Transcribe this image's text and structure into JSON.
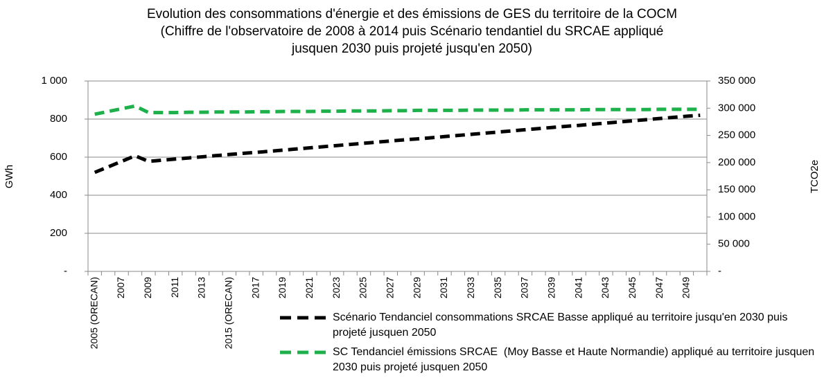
{
  "chart_data": {
    "type": "line",
    "title": [
      "Evolution des consommations d'énergie et des émissions de GES du territoire de la COCM",
      "(Chiffre de l'observatoire de 2008 à 2014 puis Scénario tendantiel du SRCAE appliqué",
      "jusquen 2030 puis projeté jusqu'en 2050)"
    ],
    "ylabel": "GWh",
    "y2label": "TCO2e",
    "categories": [
      "2005 (ORECAN)",
      null,
      "2007",
      null,
      "2009",
      null,
      "2011",
      null,
      "2013",
      null,
      "2015 (ORECAN)",
      null,
      "2017",
      null,
      "2019",
      null,
      "2021",
      null,
      "2023",
      null,
      "2025",
      null,
      "2027",
      null,
      "2029",
      null,
      "2031",
      null,
      "2033",
      null,
      "2035",
      null,
      "2037",
      null,
      "2039",
      null,
      "2041",
      null,
      "2043",
      null,
      "2045",
      null,
      "2047",
      null,
      "2049",
      null
    ],
    "ylim": [
      0,
      1000
    ],
    "yticks": [
      {
        "value": 0,
        "label": "-"
      },
      200,
      400,
      600,
      800,
      {
        "value": 1000,
        "label": "1 000"
      }
    ],
    "y2lim": [
      0,
      350000
    ],
    "y2ticks": [
      {
        "value": 0,
        "label": "-"
      },
      {
        "value": 50000,
        "label": "50 000"
      },
      {
        "value": 100000,
        "label": "100 000"
      },
      {
        "value": 150000,
        "label": "150 000"
      },
      {
        "value": 200000,
        "label": "200 000"
      },
      {
        "value": 250000,
        "label": "250 000"
      },
      {
        "value": 300000,
        "label": "300 000"
      },
      {
        "value": 350000,
        "label": "350 000"
      }
    ],
    "grid": true,
    "legend": "bottom-right",
    "series": [
      {
        "name": "Scénario Tendanciel consommations SRCAE Basse appliqué au territoire jusqu'en 2030 puis projeté jusquen 2050",
        "color": "#000000",
        "axis": "y",
        "values": [
          520,
          549,
          578,
          607,
          578,
          584,
          590,
          596,
          602,
          608,
          614,
          620,
          625,
          631,
          637,
          643,
          649,
          655,
          661,
          667,
          673,
          679,
          685,
          691,
          696,
          702,
          708,
          714,
          720,
          726,
          732,
          738,
          744,
          750,
          756,
          762,
          767,
          773,
          779,
          785,
          791,
          797,
          803,
          809,
          815,
          820
        ]
      },
      {
        "name": "SC Tendanciel émissions SRCAE  (Moy Basse et Haute Normandie) appliqué au territoire jusquen 2030 puis projeté jusquen 2050",
        "color": "#1db04b",
        "axis": "y2",
        "values": [
          289000,
          294000,
          299000,
          304000,
          292000,
          292000,
          292000,
          292500,
          292500,
          293000,
          293000,
          293000,
          293500,
          293500,
          294000,
          294000,
          294000,
          294500,
          294500,
          295000,
          295000,
          295000,
          295500,
          295500,
          296000,
          296000,
          296000,
          296000,
          296500,
          296500,
          296500,
          296500,
          297000,
          297000,
          297000,
          297000,
          297000,
          297500,
          297500,
          297500,
          297500,
          297500,
          298000,
          298000,
          298000,
          298000
        ]
      }
    ]
  }
}
